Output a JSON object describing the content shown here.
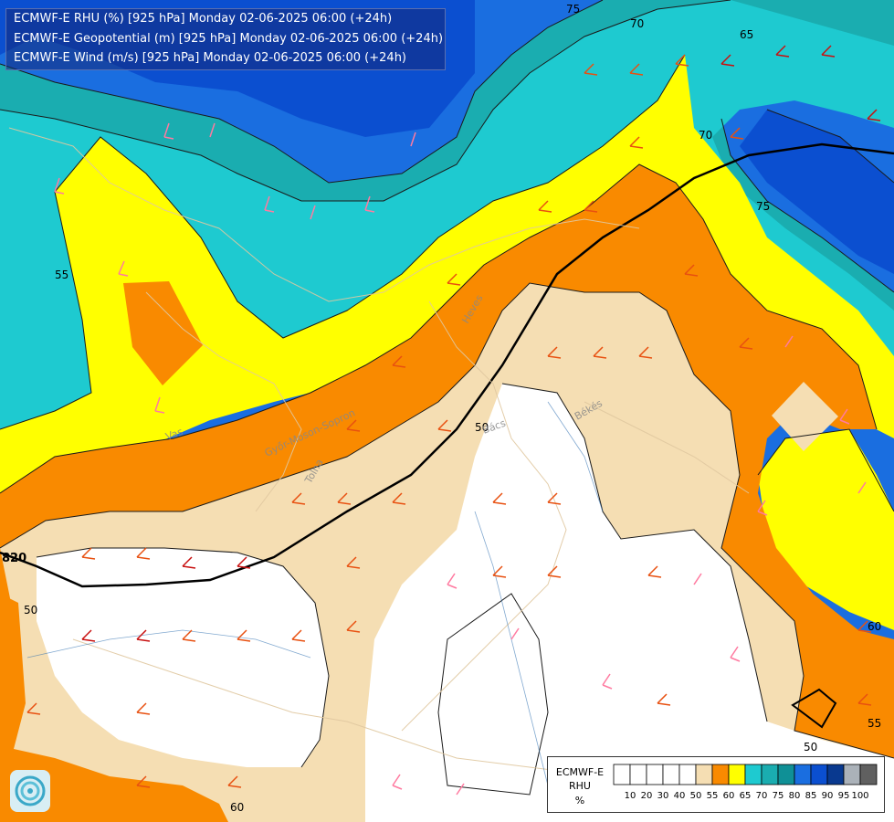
{
  "titles": [
    "ECMWF-E RHU (%) [925 hPa] Monday 02-06-2025 06:00 (+24h)",
    "ECMWF-E Geopotential (m) [925 hPa] Monday 02-06-2025 06:00 (+24h)",
    "ECMWF-E Wind (m/s) [925 hPa] Monday 02-06-2025 06:00 (+24h)"
  ],
  "legend": {
    "title_lines": [
      "ECMWF-E",
      "RHU",
      "%"
    ],
    "ticks": [
      "10",
      "20",
      "30",
      "40",
      "50",
      "55",
      "60",
      "65",
      "70",
      "75",
      "80",
      "85",
      "90",
      "95",
      "100"
    ],
    "colors": [
      "#ffffff",
      "#ffffff",
      "#ffffff",
      "#ffffff",
      "#ffffff",
      "#f5deb3",
      "#f98a00",
      "#ffff00",
      "#1ecad0",
      "#1aadb0",
      "#0f9096",
      "#1a6ee0",
      "#0b4fd0",
      "#09398f",
      "#abb2b9",
      "#606060"
    ]
  },
  "contour_labels": {
    "rh": [
      "75",
      "70",
      "65",
      "70",
      "75",
      "55",
      "50",
      "60",
      "55",
      "50",
      "60",
      "50"
    ],
    "geopotential": [
      "820"
    ]
  },
  "region_labels": [
    "Heves",
    "Vas",
    "Győr-Moson-Sopron",
    "Tolna",
    "Bács",
    "Békés"
  ],
  "colors": {
    "white": "#ffffff",
    "beige": "#f5deb3",
    "orange": "#f98a00",
    "yellow": "#ffff00",
    "cyan": "#1ecad0",
    "teal": "#1aadb0",
    "blue": "#1a6ee0",
    "deep_blue": "#0b4fd0",
    "navy": "#09398f",
    "title_background": "#14287a"
  },
  "logo_icon": "ecmwf-swirl-icon"
}
